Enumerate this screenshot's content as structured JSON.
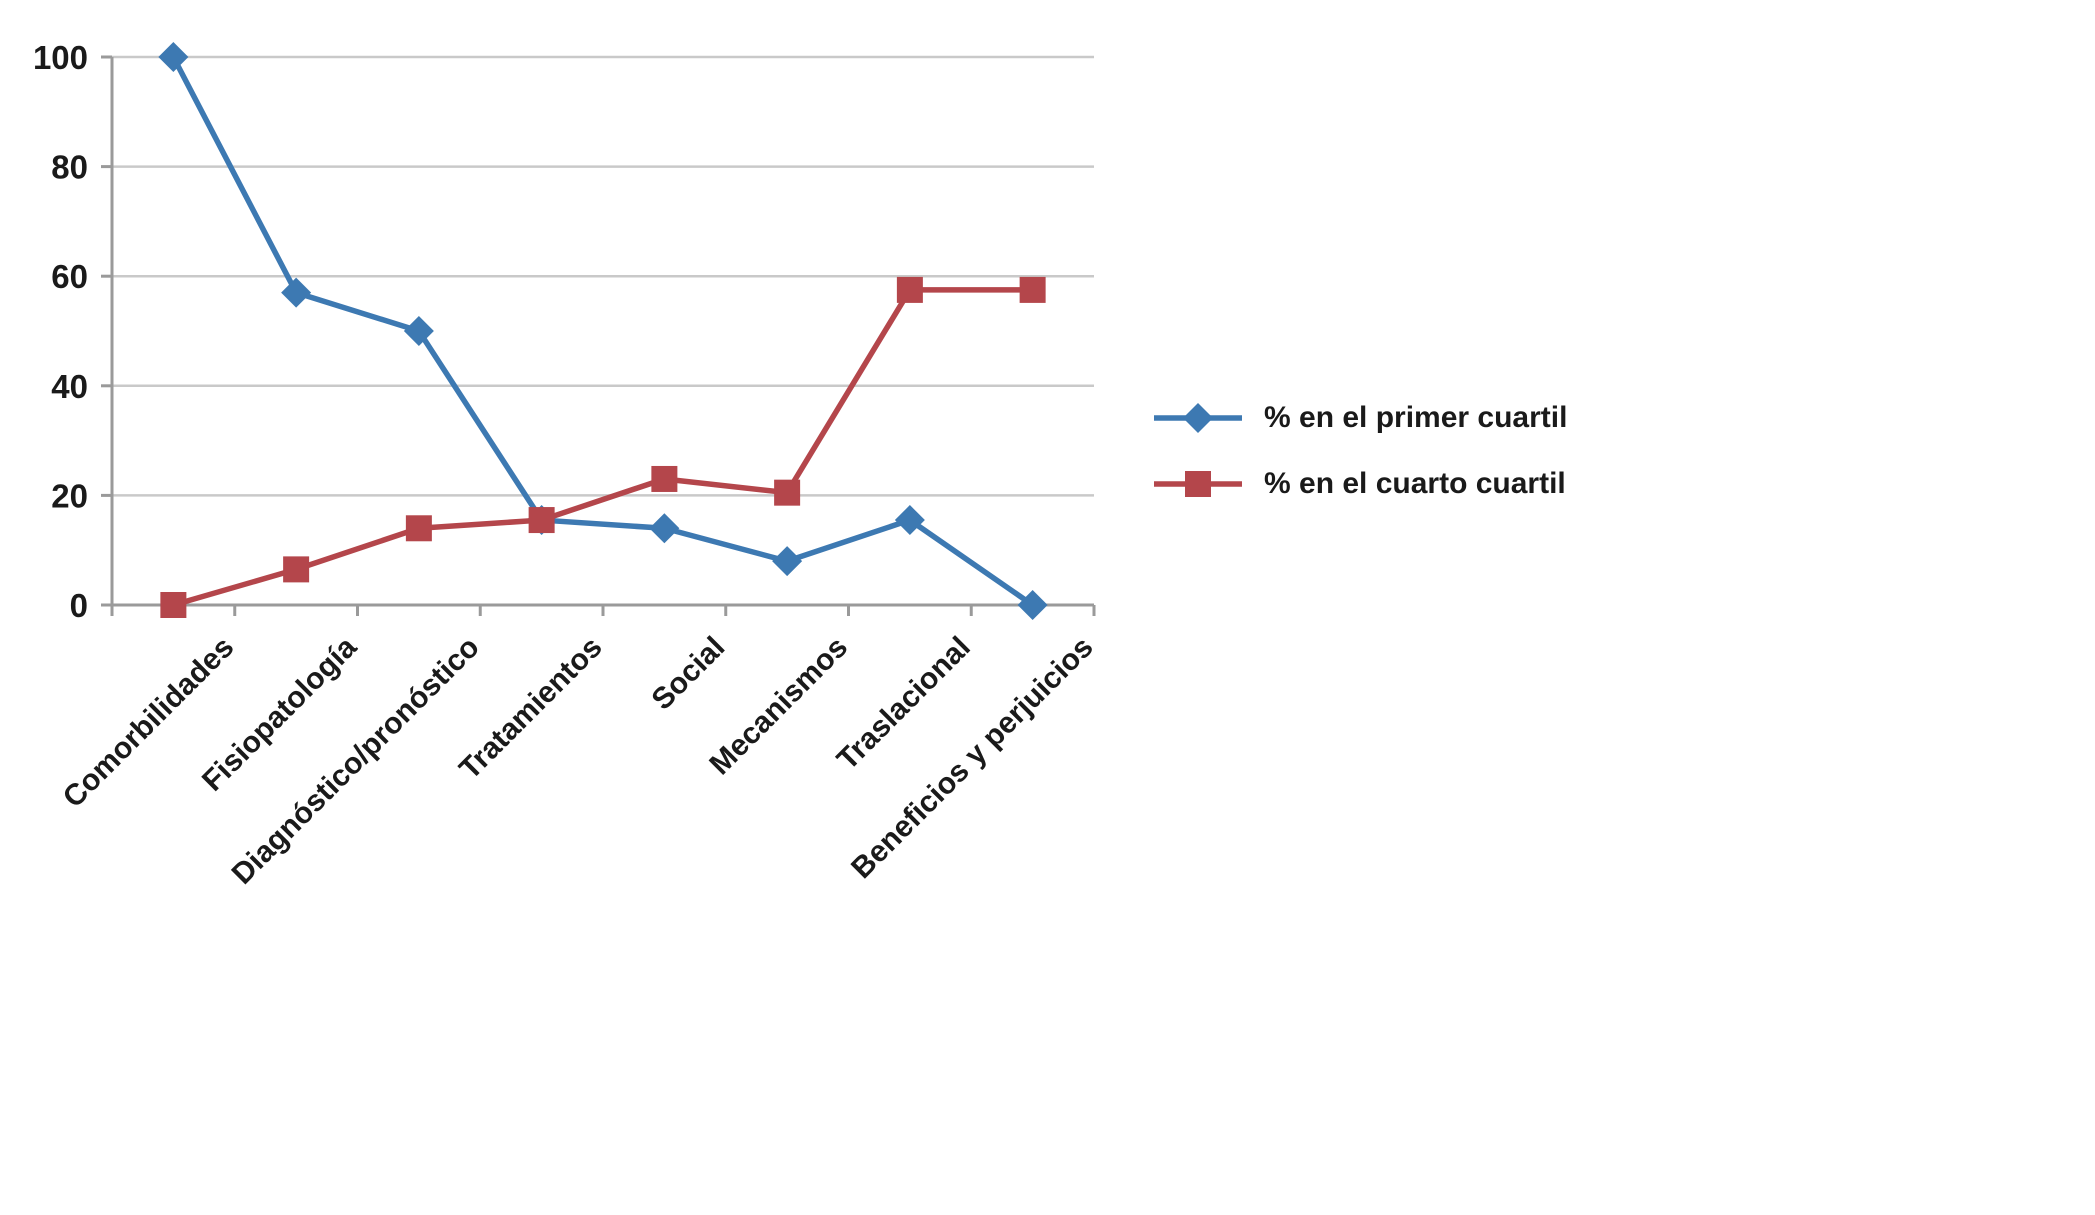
{
  "chart_data": {
    "type": "line",
    "title": "",
    "xlabel": "",
    "ylabel": "",
    "categories": [
      "Comorbilidades",
      "Fisiopatología",
      "Diagnóstico/pronóstico",
      "Tratamientos",
      "Social",
      "Mecanismos",
      "Traslacional",
      "Beneficios y perjuicios"
    ],
    "series": [
      {
        "name": "% en el primer cuartil",
        "color": "#3d79b2",
        "marker": "diamond",
        "values": [
          100,
          57,
          50,
          15.5,
          14,
          8,
          15.5,
          0
        ]
      },
      {
        "name": "% en el cuarto cuartil",
        "color": "#b4464b",
        "marker": "square",
        "values": [
          0,
          6.5,
          14,
          15.5,
          23,
          20.5,
          57.5,
          57.5
        ]
      }
    ],
    "ylim": [
      0,
      100
    ],
    "yticks": [
      0,
      20,
      40,
      60,
      80,
      100
    ],
    "grid": "horizontal",
    "legend_position": "right",
    "gridline_color": "#c9c9c9",
    "axis_color": "#9a9a9a",
    "label_color": "#1a1a1a",
    "background_color": "#ffffff"
  }
}
